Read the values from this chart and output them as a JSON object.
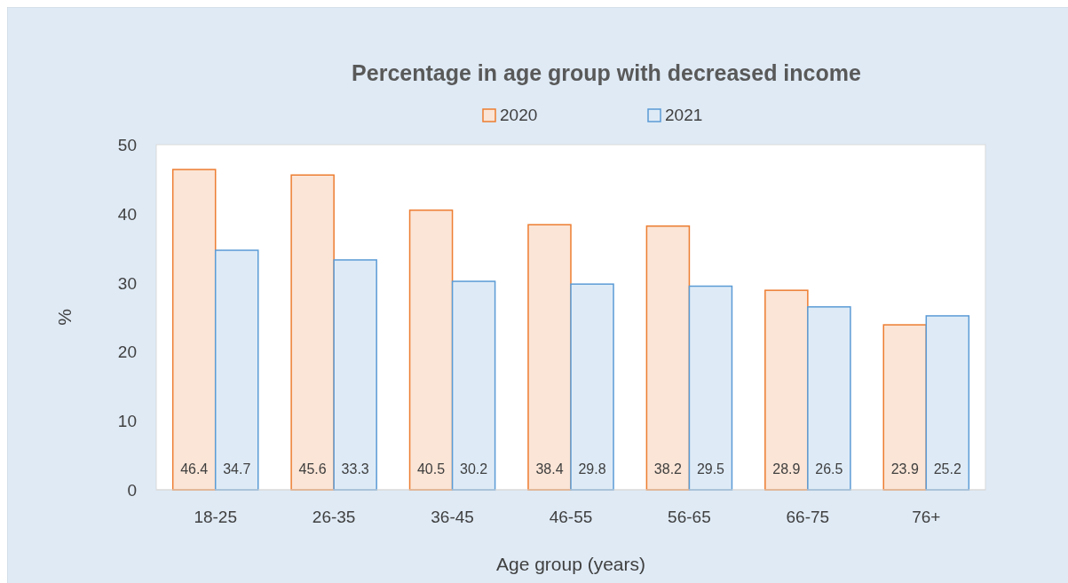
{
  "chart_data": {
    "type": "bar",
    "title": "Percentage in age group with decreased income",
    "xlabel": "Age group (years)",
    "ylabel": "%",
    "categories": [
      "18-25",
      "26-35",
      "36-45",
      "46-55",
      "56-65",
      "66-75",
      "76+"
    ],
    "series": [
      {
        "name": "2020",
        "color": "#ed7d31",
        "values": [
          46.4,
          45.6,
          40.5,
          38.4,
          38.2,
          28.9,
          23.9
        ]
      },
      {
        "name": "2021",
        "color": "#5b9bd5",
        "values": [
          34.7,
          33.3,
          30.2,
          29.8,
          29.5,
          26.5,
          25.2
        ]
      }
    ],
    "ylim": [
      0,
      50
    ],
    "yticks": [
      0,
      10,
      20,
      30,
      40,
      50
    ],
    "grid": false,
    "legend": "top",
    "data_labels": true
  }
}
